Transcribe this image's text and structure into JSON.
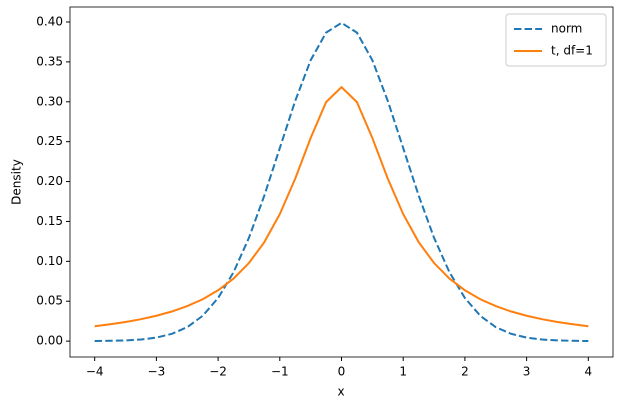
{
  "chart_data": {
    "type": "line",
    "xlabel": "x",
    "ylabel": "Density",
    "x": [
      -4,
      -3.75,
      -3.5,
      -3.25,
      -3,
      -2.75,
      -2.5,
      -2.25,
      -2,
      -1.75,
      -1.5,
      -1.25,
      -1,
      -0.75,
      -0.5,
      -0.25,
      0,
      0.25,
      0.5,
      0.75,
      1,
      1.25,
      1.5,
      1.75,
      2,
      2.25,
      2.5,
      2.75,
      3,
      3.25,
      3.5,
      3.75,
      4
    ],
    "series": [
      {
        "name": "norm",
        "color": "#1f77b4",
        "linestyle": "dashed",
        "values": [
          0.0001,
          0.0004,
          0.0009,
          0.002,
          0.0044,
          0.0091,
          0.0175,
          0.0317,
          0.054,
          0.0863,
          0.1295,
          0.1826,
          0.242,
          0.3011,
          0.3521,
          0.3867,
          0.3989,
          0.3867,
          0.3521,
          0.3011,
          0.242,
          0.1826,
          0.1295,
          0.0863,
          0.054,
          0.0317,
          0.0175,
          0.0091,
          0.0044,
          0.002,
          0.0009,
          0.0004,
          0.0001
        ]
      },
      {
        "name": "t, df=1",
        "color": "#ff7f0e",
        "linestyle": "solid",
        "values": [
          0.0187,
          0.0212,
          0.024,
          0.0275,
          0.0318,
          0.0371,
          0.0439,
          0.0525,
          0.0637,
          0.0784,
          0.0979,
          0.1242,
          0.1592,
          0.2037,
          0.2546,
          0.2996,
          0.3183,
          0.2996,
          0.2546,
          0.2037,
          0.1592,
          0.1242,
          0.0979,
          0.0784,
          0.0637,
          0.0525,
          0.0439,
          0.0371,
          0.0318,
          0.0275,
          0.024,
          0.0212,
          0.0187
        ]
      }
    ],
    "xlim": [
      -4.4,
      4.4
    ],
    "xticks": [
      {
        "value": -4,
        "label": "−4"
      },
      {
        "value": -3,
        "label": "−3"
      },
      {
        "value": -2,
        "label": "−2"
      },
      {
        "value": -1,
        "label": "−1"
      },
      0,
      1,
      2,
      3,
      4
    ],
    "ylim": [
      -0.0199,
      0.4188
    ],
    "yticks": [
      {
        "value": 0,
        "label": "0.00"
      },
      {
        "value": 0.05,
        "label": "0.05"
      },
      {
        "value": 0.1,
        "label": "0.10"
      },
      {
        "value": 0.15,
        "label": "0.15"
      },
      {
        "value": 0.2,
        "label": "0.20"
      },
      {
        "value": 0.25,
        "label": "0.25"
      },
      {
        "value": 0.3,
        "label": "0.30"
      },
      {
        "value": 0.35,
        "label": "0.35"
      },
      {
        "value": 0.4,
        "label": "0.40"
      }
    ],
    "legend": "upper right"
  }
}
